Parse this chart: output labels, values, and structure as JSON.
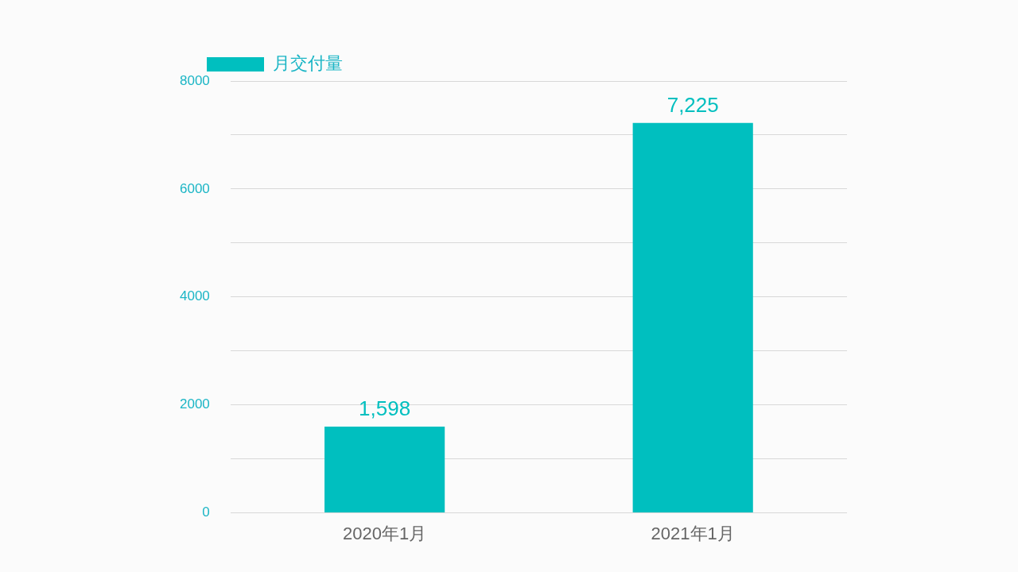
{
  "chart_data": {
    "type": "bar",
    "categories": [
      "2020年1月",
      "2021年1月"
    ],
    "series": [
      {
        "name": "月交付量",
        "color": "#00bfbf",
        "values": [
          1598,
          7225
        ],
        "value_labels": [
          "1,598",
          "7,225"
        ]
      }
    ],
    "ylim": [
      0,
      8000
    ],
    "yticks": [
      0,
      {
        "value": 1000,
        "label": null
      },
      2000,
      {
        "value": 3000,
        "label": null
      },
      4000,
      {
        "value": 5000,
        "label": null
      },
      6000,
      {
        "value": 7000,
        "label": null
      },
      8000
    ],
    "grid": "y",
    "legend": "top left"
  }
}
